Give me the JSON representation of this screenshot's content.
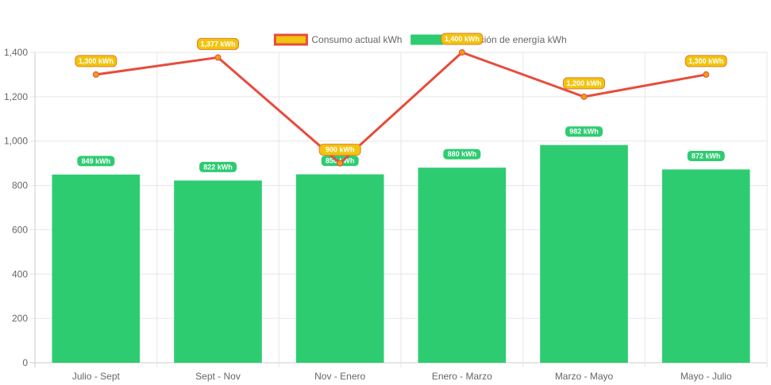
{
  "chart_data": {
    "type": "bar",
    "categories": [
      "Julio - Sept",
      "Sept - Nov",
      "Nov - Enero",
      "Enero - Marzo",
      "Marzo - Mayo",
      "Mayo - Julio"
    ],
    "series": [
      {
        "name": "Consumo actual kWh",
        "type": "line",
        "values": [
          1300,
          1377,
          900,
          1400,
          1200,
          1300
        ],
        "labels": [
          "1,300 kWh",
          "1,377 kWh",
          "900 kWh",
          "1,400 kWh",
          "1,200 kWh",
          "1,300 kWh"
        ],
        "color": "#e74c3c",
        "label_bg": "#f1c40f",
        "label_border": "#e67e22"
      },
      {
        "name": "Generación de energía kWh",
        "type": "bar",
        "values": [
          849,
          822,
          850,
          880,
          982,
          872
        ],
        "labels": [
          "849 kWh",
          "822 kWh",
          "850 kWh",
          "880 kWh",
          "982 kWh",
          "872 kWh"
        ],
        "color": "#2ecc71"
      }
    ],
    "ylim": [
      0,
      1400
    ],
    "yticks": [
      0,
      200,
      400,
      600,
      800,
      1000,
      1200,
      1400
    ],
    "ytick_labels": [
      "0",
      "200",
      "400",
      "600",
      "800",
      "1,000",
      "1,200",
      "1,400"
    ],
    "grid": true,
    "legend": "top-center",
    "legend_items": [
      {
        "label": "Consumo actual kWh",
        "fill": "#f1c40f",
        "stroke": "#e74c3c"
      },
      {
        "label": "Generación de energía kWh",
        "fill": "#2ecc71",
        "stroke": "#2ecc71"
      }
    ]
  }
}
